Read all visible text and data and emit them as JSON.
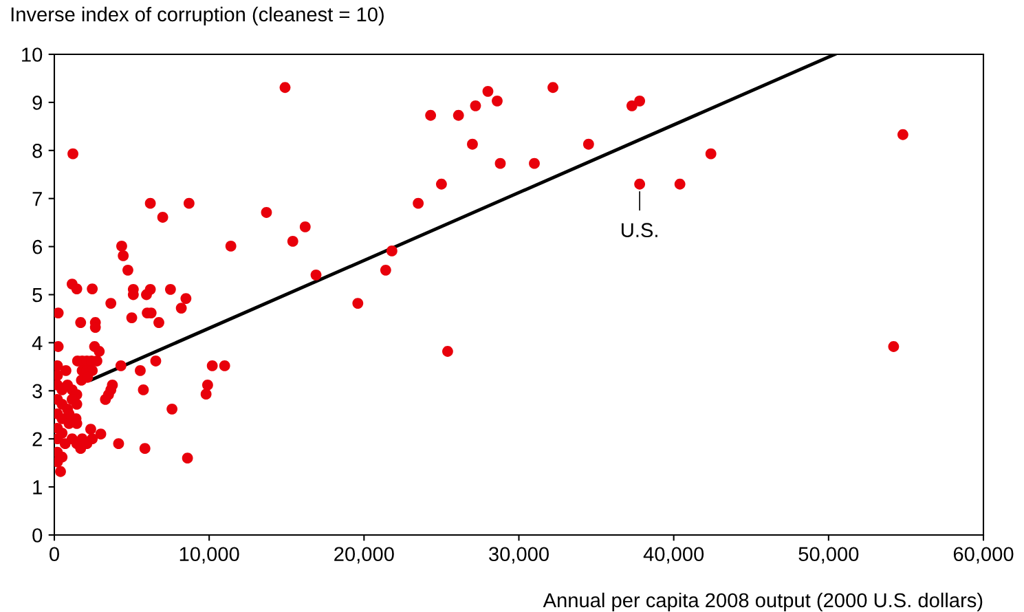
{
  "chart_data": {
    "type": "scatter",
    "ylabel": "Inverse index of corruption (cleanest = 10)",
    "xlabel": "Annual per capita 2008 output (2000 U.S. dollars)",
    "xlim": [
      0,
      60000
    ],
    "ylim": [
      0,
      10
    ],
    "xticks": [
      0,
      {
        "value": 10000,
        "label": "10,000"
      },
      {
        "value": 20000,
        "label": "20,000"
      },
      {
        "value": 30000,
        "label": "30,000"
      },
      {
        "value": 40000,
        "label": "40,000"
      },
      {
        "value": 50000,
        "label": "50,000"
      },
      {
        "value": 60000,
        "label": "60,000"
      }
    ],
    "yticks": [
      0,
      1,
      2,
      3,
      4,
      5,
      6,
      7,
      8,
      9,
      10
    ],
    "grid": false,
    "annotations": [
      {
        "text": "U.S.",
        "x": 37800,
        "y": 7.3
      }
    ],
    "series": [
      {
        "color": "#e8000b",
        "marker": "circle",
        "x": [
          14900,
          24300,
          26100,
          27200,
          28000,
          28600,
          32200,
          27000,
          28800,
          31000,
          25000,
          23500,
          37300,
          37800,
          34500,
          37800,
          40400,
          42400,
          54800,
          54200,
          25400,
          19600,
          21400,
          21800,
          16900,
          15400,
          16200,
          13700,
          11400,
          8700,
          6200,
          7000,
          1200,
          4350,
          4450,
          4750,
          5100,
          5100,
          6200,
          5950,
          7500,
          8500,
          8200,
          3650,
          6000,
          6250,
          6750,
          5000,
          1150,
          1450,
          2450,
          250,
          250,
          1700,
          2650,
          2650,
          2600,
          2900,
          4300,
          6550,
          5550,
          5750,
          10200,
          11000,
          9900,
          9800,
          7600,
          3750,
          3650,
          3500,
          3300,
          4150,
          5850,
          8600,
          3000,
          2350,
          2450,
          1500,
          1800,
          2100,
          2400,
          2750,
          1800,
          2100,
          2450,
          1750,
          2150,
          200,
          200,
          750,
          200,
          500,
          850,
          1150,
          1450,
          200,
          500,
          850,
          1150,
          1450,
          200,
          500,
          950,
          1400,
          200,
          500,
          950,
          1450,
          200,
          700,
          1150,
          1450,
          1800,
          1700,
          2100,
          200,
          500,
          200,
          400
        ],
        "values": [
          9.31,
          8.73,
          8.73,
          8.93,
          9.23,
          9.03,
          9.31,
          8.13,
          7.73,
          7.73,
          7.3,
          6.9,
          8.93,
          9.03,
          8.13,
          7.3,
          7.3,
          7.93,
          8.33,
          3.92,
          3.82,
          4.82,
          5.51,
          5.91,
          5.41,
          6.11,
          6.41,
          6.71,
          6.01,
          6.9,
          6.9,
          6.61,
          7.93,
          6.01,
          5.81,
          5.51,
          5.11,
          5.0,
          5.11,
          5.0,
          5.11,
          4.92,
          4.72,
          4.82,
          4.62,
          4.62,
          4.42,
          4.52,
          5.22,
          5.12,
          5.12,
          4.62,
          3.92,
          4.42,
          4.42,
          4.32,
          3.92,
          3.82,
          3.52,
          3.62,
          3.42,
          3.02,
          3.52,
          3.52,
          3.12,
          2.93,
          2.62,
          3.12,
          3.02,
          2.92,
          2.82,
          1.9,
          1.8,
          1.6,
          2.1,
          2.2,
          2.0,
          3.62,
          3.62,
          3.62,
          3.62,
          3.62,
          3.42,
          3.42,
          3.42,
          3.22,
          3.28,
          3.52,
          3.32,
          3.42,
          3.12,
          3.02,
          3.12,
          3.02,
          2.92,
          2.82,
          2.72,
          2.62,
          2.82,
          2.72,
          2.52,
          2.42,
          2.52,
          2.42,
          2.22,
          2.12,
          2.32,
          2.32,
          2.0,
          1.9,
          2.0,
          1.9,
          2.0,
          1.8,
          1.9,
          1.72,
          1.62,
          1.52,
          1.32
        ]
      },
      {
        "type": "line",
        "color": "#000000",
        "x": [
          2400,
          50400
        ],
        "values": [
          3.23,
          10.0
        ]
      }
    ]
  }
}
